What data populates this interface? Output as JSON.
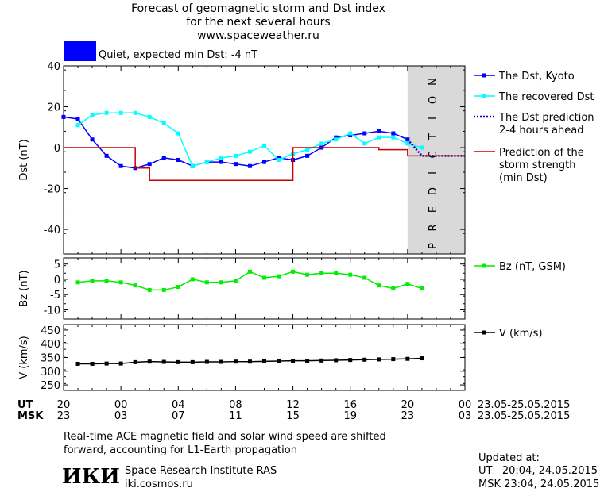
{
  "header": {
    "title_line1": "Forecast of geomagnetic storm and Dst index",
    "title_line2": "for the next several hours",
    "website": "www.spaceweather.ru",
    "status_text": "Quiet, expected min Dst: -4 nT",
    "status_color": "#0000ff"
  },
  "chart_data": [
    {
      "type": "line",
      "ylabel": "Dst (nT)",
      "ylim": [
        -52,
        40
      ],
      "yticks": [
        40,
        20,
        0,
        -20,
        -40
      ],
      "xlim": [
        0,
        28
      ],
      "prediction_band": {
        "x0": 24,
        "label": "PREDICTION",
        "color": "#d9d9d9"
      },
      "series": [
        {
          "name": "The Dst, Kyoto",
          "color": "#0000ff",
          "style": "line-square",
          "x": [
            0,
            1,
            2,
            3,
            4,
            5,
            6,
            7,
            8,
            9,
            10,
            11,
            12,
            13,
            14,
            15,
            16,
            17,
            18,
            19,
            20,
            21,
            22,
            23,
            24
          ],
          "y": [
            15,
            14,
            4,
            -4,
            -9,
            -10,
            -8,
            -5,
            -6,
            -9,
            -7,
            -7,
            -8,
            -9,
            -7,
            -5,
            -6,
            -4,
            0,
            5,
            6,
            7,
            8,
            7,
            4
          ]
        },
        {
          "name": "The recovered Dst",
          "color": "#00ffff",
          "style": "line-square",
          "x": [
            1,
            2,
            3,
            4,
            5,
            6,
            7,
            8,
            9,
            10,
            11,
            12,
            13,
            14,
            15,
            16,
            17,
            18,
            19,
            20,
            21,
            22,
            23,
            24,
            25
          ],
          "y": [
            11,
            16,
            17,
            17,
            17,
            15,
            12,
            7,
            -9,
            -7,
            -5,
            -4,
            -2,
            1,
            -6,
            -3,
            -1,
            2,
            4,
            7,
            2,
            5,
            5,
            2,
            0
          ]
        },
        {
          "name": "The Dst prediction 2-4 hours ahead",
          "color": "#0000cc",
          "style": "dotted",
          "x": [
            24,
            25,
            26,
            27,
            28
          ],
          "y": [
            4,
            -4,
            -4,
            -4,
            -4
          ]
        },
        {
          "name": "Prediction of the storm strength (min Dst)",
          "color": "#cc0000",
          "style": "step",
          "x": [
            0,
            4,
            5,
            6,
            7,
            8,
            9,
            10,
            11,
            12,
            13,
            14,
            15,
            16,
            17,
            18,
            19,
            20,
            21,
            22,
            23,
            24,
            28
          ],
          "y": [
            0,
            0,
            -10,
            -16,
            -16,
            -16,
            -16,
            -16,
            -16,
            -16,
            -16,
            -16,
            -16,
            0,
            0,
            0,
            0,
            0,
            0,
            -1,
            -1,
            -4,
            -4
          ]
        }
      ],
      "legend": [
        {
          "line1": "The Dst, Kyoto",
          "line2": "",
          "line3": ""
        },
        {
          "line1": "The recovered Dst",
          "line2": "",
          "line3": ""
        },
        {
          "line1": "The Dst prediction",
          "line2": "2-4 hours ahead",
          "line3": ""
        },
        {
          "line1": "Prediction of the",
          "line2": "storm strength",
          "line3": "(min Dst)"
        }
      ]
    },
    {
      "type": "line",
      "ylabel": "Bz (nT)",
      "ylim": [
        -13,
        7
      ],
      "yticks": [
        5,
        0,
        -5,
        -10
      ],
      "xlim": [
        0,
        28
      ],
      "series": [
        {
          "name": "Bz (nT, GSM)",
          "color": "#00ee00",
          "style": "line-square",
          "x": [
            1,
            2,
            3,
            4,
            5,
            6,
            7,
            8,
            9,
            10,
            11,
            12,
            13,
            14,
            15,
            16,
            17,
            18,
            19,
            20,
            21,
            22,
            23,
            24,
            25
          ],
          "y": [
            -1,
            -0.5,
            -0.5,
            -1,
            -2,
            -3.5,
            -3.5,
            -2.5,
            0,
            -1,
            -1,
            -0.5,
            2.5,
            0.5,
            1,
            2.5,
            1.5,
            2,
            2,
            1.5,
            0.5,
            -2,
            -3,
            -1.5,
            -3
          ]
        }
      ],
      "legend": [
        {
          "line1": "Bz (nT, GSM)"
        }
      ]
    },
    {
      "type": "line",
      "ylabel": "V (km/s)",
      "ylim": [
        230,
        470
      ],
      "yticks": [
        400,
        350,
        300,
        250
      ],
      "yticks_minor": [
        450
      ],
      "xlim": [
        0,
        28
      ],
      "series": [
        {
          "name": "V (km/s)",
          "color": "#000000",
          "style": "line-square",
          "x": [
            1,
            2,
            3,
            4,
            5,
            6,
            7,
            8,
            9,
            10,
            11,
            12,
            13,
            14,
            15,
            16,
            17,
            18,
            19,
            20,
            21,
            22,
            23,
            24,
            25
          ],
          "y": [
            327,
            327,
            328,
            328,
            333,
            335,
            334,
            333,
            333,
            334,
            334,
            335,
            335,
            336,
            337,
            338,
            338,
            339,
            340,
            341,
            342,
            343,
            344,
            345,
            347
          ]
        }
      ],
      "legend": [
        {
          "line1": "V (km/s)"
        }
      ]
    }
  ],
  "axis_x": {
    "ut_label": "UT",
    "msk_label": "MSK",
    "ut_ticks": [
      "20",
      "00",
      "04",
      "08",
      "12",
      "16",
      "20",
      "00"
    ],
    "msk_ticks": [
      "23",
      "03",
      "07",
      "11",
      "15",
      "19",
      "23",
      "03"
    ],
    "date_range": "23.05-25.05.2015"
  },
  "footer": {
    "note_line1": "Real-time ACE magnetic field and solar wind speed are shifted",
    "note_line2": "forward, accounting for L1-Earth propagation",
    "institute": "Space Research Institute RAS",
    "institute_site": "iki.cosmos.ru",
    "logo_text": "ИКИ",
    "updated_label": "Updated at:",
    "updated_ut": "UT   20:04, 24.05.2015",
    "updated_msk": "MSK 23:04, 24.05.2015"
  }
}
